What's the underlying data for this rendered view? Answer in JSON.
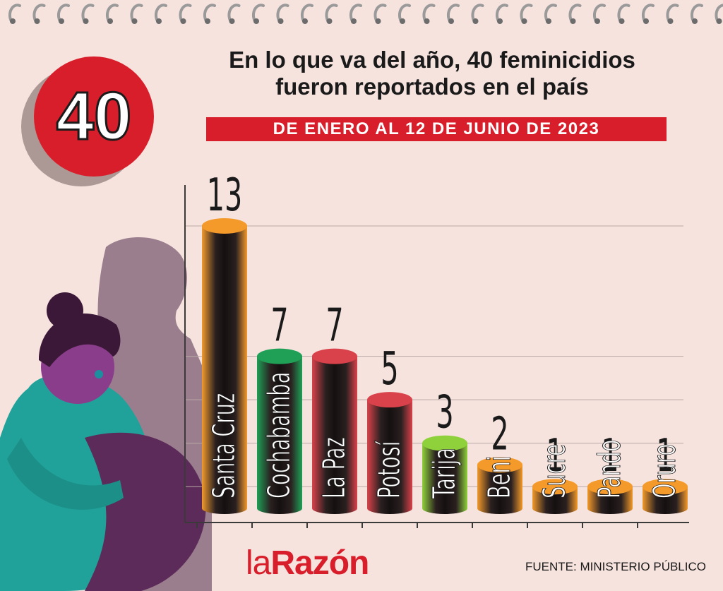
{
  "badge": {
    "value": "40"
  },
  "headline": {
    "line1": "En lo que va del año, 40 feminicidios",
    "line2": "fueron reportados en el país"
  },
  "subtitle": "DE ENERO AL 12 DE JUNIO DE 2023",
  "brand": {
    "part1": "la",
    "part2": "Razón"
  },
  "source": "FUENTE: MINISTERIO PÚBLICO",
  "colors": {
    "background": "#f7e3de",
    "accent_red": "#d81e2a",
    "orange": "#f39a2b",
    "green": "#1fa056",
    "red": "#d9424a",
    "lime": "#8fd13b"
  },
  "chart_data": {
    "type": "bar",
    "title": "",
    "xlabel": "",
    "ylabel": "",
    "ylim": [
      0,
      14
    ],
    "grid": true,
    "categories": [
      "Santa Cruz",
      "Cochabamba",
      "La Paz",
      "Potosí",
      "Tarija",
      "Beni",
      "Sucre",
      "Pando",
      "Oruro"
    ],
    "values": [
      13,
      7,
      7,
      5,
      3,
      2,
      1,
      1,
      1
    ],
    "bar_colors": [
      "#f39a2b",
      "#1fa056",
      "#d9424a",
      "#d9424a",
      "#8fd13b",
      "#f39a2b",
      "#f39a2b",
      "#f39a2b",
      "#f39a2b"
    ]
  }
}
